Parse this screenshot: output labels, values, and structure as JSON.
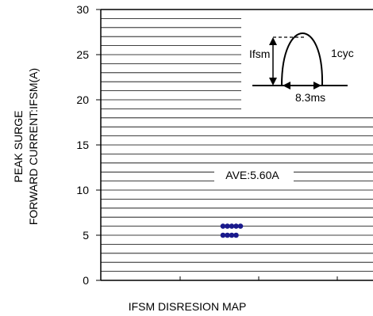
{
  "chart_data": {
    "type": "scatter",
    "title": "IFSM DISRESION MAP",
    "ylabel": [
      "PEAK SURGE",
      "FORWARD CURRENT:IFSM(A)"
    ],
    "xlabel": "",
    "ylim": [
      0,
      30
    ],
    "yticks": [
      0,
      5,
      10,
      15,
      20,
      25,
      30
    ],
    "grid_minor_step": 1,
    "grid": true,
    "annotation": "AVE:5.60A",
    "annotation_y": 10.5,
    "series": [
      {
        "marker_color": "#1a1a8c",
        "points": [
          {
            "x": 0,
            "y": 6
          },
          {
            "x": 1,
            "y": 6
          },
          {
            "x": 2,
            "y": 6
          },
          {
            "x": 3,
            "y": 6
          },
          {
            "x": 4,
            "y": 6
          },
          {
            "x": 0,
            "y": 5
          },
          {
            "x": 1,
            "y": 5
          },
          {
            "x": 2,
            "y": 5
          },
          {
            "x": 3,
            "y": 5
          }
        ]
      }
    ],
    "inset": {
      "peak_label": "Ifsm",
      "cycle_label": "1cyc",
      "width_label": "8.3ms"
    }
  }
}
